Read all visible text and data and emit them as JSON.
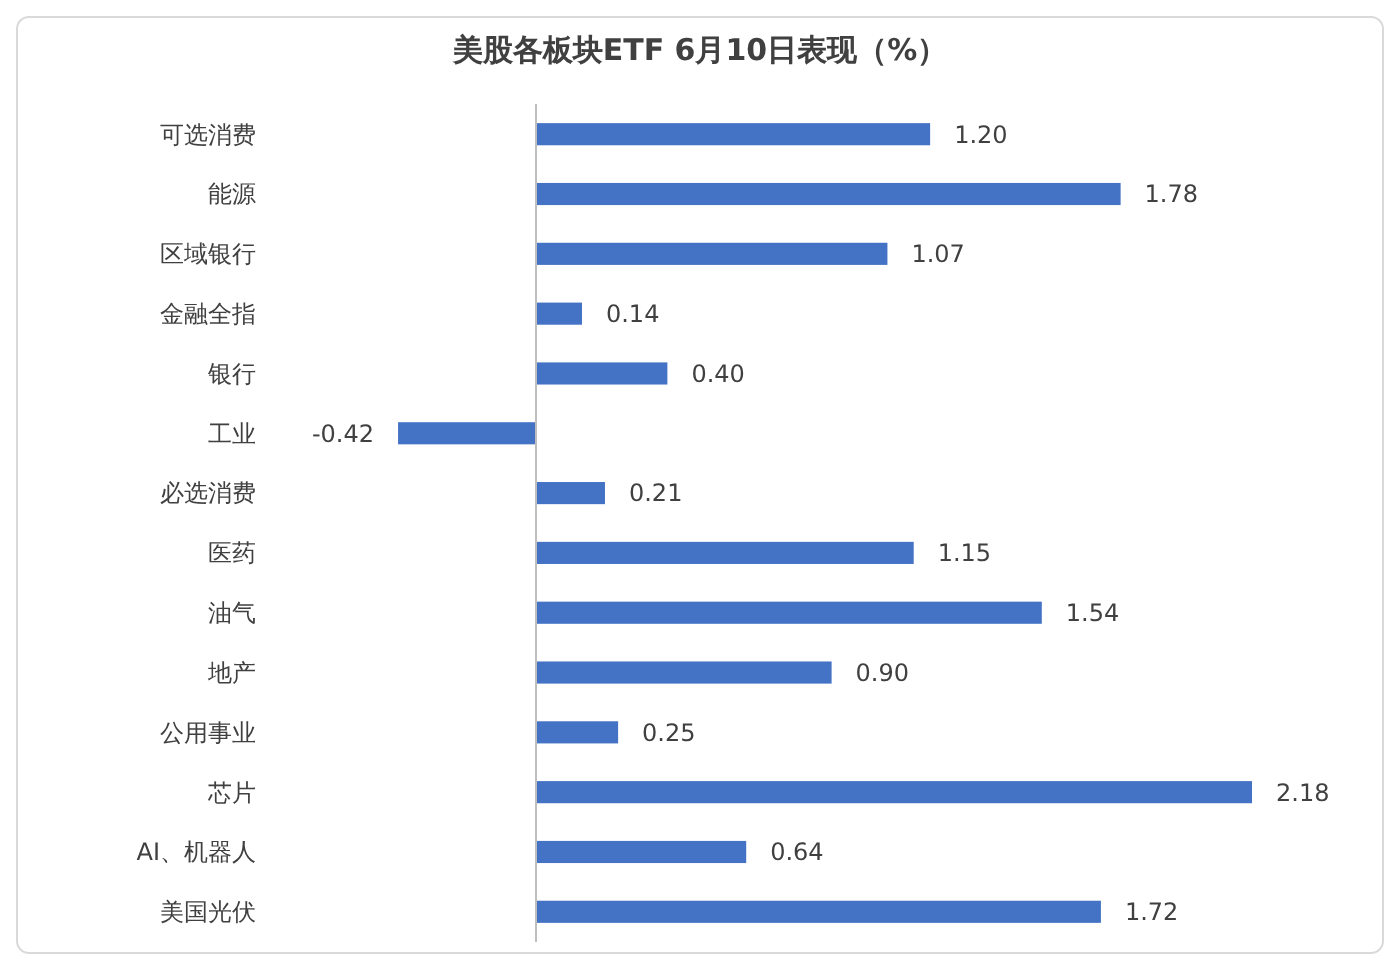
{
  "chart_data": {
    "type": "bar",
    "orientation": "horizontal",
    "title": "美股各板块ETF  6月10日表现（%）",
    "categories": [
      "可选消费",
      "能源",
      "区域银行",
      "金融全指",
      "银行",
      "工业",
      "必选消费",
      "医药",
      "油气",
      "地产",
      "公用事业",
      "芯片",
      "AI、机器人",
      "美国光伏"
    ],
    "values": [
      1.2,
      1.78,
      1.07,
      0.14,
      0.4,
      -0.42,
      0.21,
      1.15,
      1.54,
      0.9,
      0.25,
      2.18,
      0.64,
      1.72
    ],
    "value_labels": [
      "1.20",
      "1.78",
      "1.07",
      "0.14",
      "0.40",
      "-0.42",
      "0.21",
      "1.15",
      "1.54",
      "0.90",
      "0.25",
      "2.18",
      "0.64",
      "1.72"
    ],
    "color": "#4472c4",
    "grid": false
  }
}
